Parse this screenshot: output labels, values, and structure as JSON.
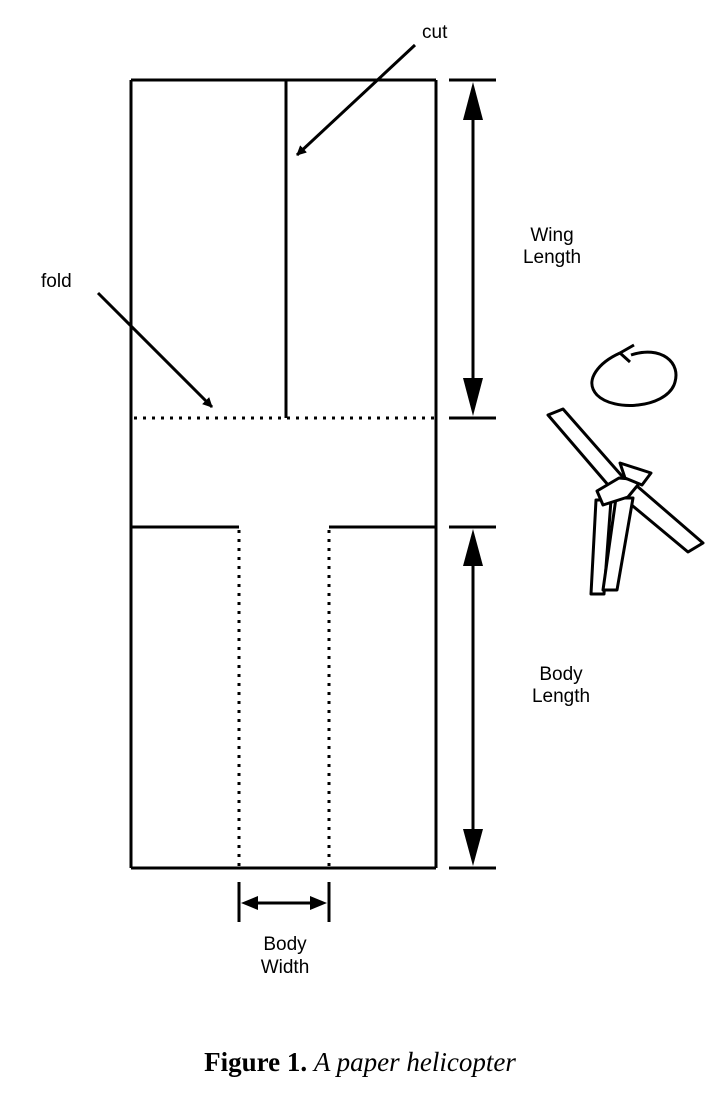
{
  "labels": {
    "cut": "cut",
    "fold": "fold",
    "wing_length": [
      "Wing",
      "Length"
    ],
    "body_length": [
      "Body",
      "Length"
    ],
    "body_width": [
      "Body",
      "Width"
    ]
  },
  "caption": {
    "label": "Figure 1.",
    "text": "A paper helicopter"
  }
}
